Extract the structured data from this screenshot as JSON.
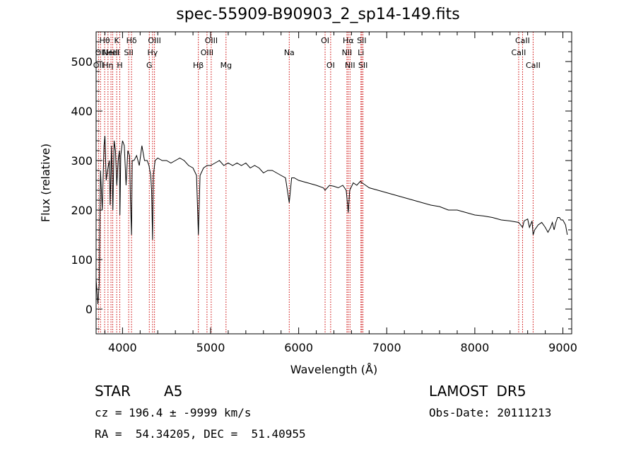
{
  "chart_data": {
    "type": "line",
    "title": "spec-55909-B90903_2_sp14-149.fits",
    "xlabel": "Wavelength (Å)",
    "ylabel": "Flux (relative)",
    "xlim": [
      3700,
      9100
    ],
    "ylim": [
      -50,
      560
    ],
    "xticks": [
      4000,
      5000,
      6000,
      7000,
      8000,
      9000
    ],
    "yticks": [
      0,
      100,
      200,
      300,
      400,
      500
    ],
    "line_color": "#000000",
    "marker_color": "#cc0000",
    "series": [
      {
        "x": [
          3700,
          3720,
          3735,
          3750,
          3770,
          3790,
          3800,
          3815,
          3830,
          3850,
          3860,
          3875,
          3890,
          3905,
          3920,
          3935,
          3950,
          3965,
          3970,
          3980,
          4000,
          4020,
          4040,
          4060,
          4080,
          4090,
          4102,
          4110,
          4130,
          4160,
          4190,
          4220,
          4250,
          4280,
          4300,
          4320,
          4330,
          4341,
          4350,
          4370,
          4400,
          4450,
          4500,
          4550,
          4600,
          4650,
          4700,
          4750,
          4800,
          4840,
          4861,
          4880,
          4920,
          4960,
          5000,
          5050,
          5100,
          5150,
          5200,
          5250,
          5300,
          5350,
          5400,
          5450,
          5500,
          5550,
          5600,
          5650,
          5700,
          5750,
          5800,
          5850,
          5893,
          5920,
          5950,
          6000,
          6100,
          6200,
          6280,
          6300,
          6350,
          6400,
          6450,
          6500,
          6540,
          6563,
          6580,
          6620,
          6660,
          6700,
          6720,
          6760,
          6800,
          6900,
          7000,
          7100,
          7200,
          7300,
          7400,
          7500,
          7600,
          7700,
          7800,
          7900,
          8000,
          8100,
          8200,
          8300,
          8400,
          8498,
          8520,
          8542,
          8560,
          8600,
          8620,
          8650,
          8662,
          8680,
          8720,
          8760,
          8800,
          8830,
          8860,
          8880,
          8900,
          8920,
          8940,
          8960,
          8980,
          9000,
          9030,
          9050
        ],
        "y": [
          60,
          10,
          50,
          280,
          200,
          330,
          350,
          260,
          280,
          300,
          210,
          330,
          200,
          340,
          320,
          250,
          300,
          320,
          190,
          310,
          340,
          330,
          250,
          320,
          310,
          220,
          150,
          300,
          300,
          310,
          290,
          330,
          300,
          300,
          290,
          270,
          240,
          140,
          270,
          300,
          305,
          300,
          300,
          295,
          300,
          305,
          300,
          290,
          285,
          270,
          150,
          270,
          285,
          290,
          290,
          295,
          300,
          290,
          295,
          290,
          295,
          290,
          295,
          285,
          290,
          285,
          275,
          280,
          280,
          275,
          270,
          265,
          215,
          265,
          265,
          260,
          255,
          250,
          245,
          240,
          250,
          248,
          245,
          250,
          240,
          195,
          240,
          255,
          250,
          258,
          255,
          250,
          245,
          240,
          235,
          230,
          225,
          220,
          215,
          210,
          207,
          200,
          200,
          195,
          190,
          188,
          185,
          180,
          178,
          175,
          170,
          165,
          178,
          182,
          165,
          178,
          150,
          160,
          170,
          175,
          165,
          155,
          165,
          175,
          160,
          175,
          185,
          185,
          180,
          180,
          170,
          150
        ]
      }
    ],
    "lines": [
      {
        "wave": 3727,
        "labels": [
          "OII"
        ],
        "row": 2
      },
      {
        "wave": 3750,
        "labels": [
          "OII"
        ],
        "row": 1
      },
      {
        "wave": 3797,
        "labels": [
          "Hθ"
        ],
        "row": 0
      },
      {
        "wave": 3835,
        "labels": [
          "Hη"
        ],
        "row": 2
      },
      {
        "wave": 3869,
        "labels": [
          "NeIII"
        ],
        "row": 1
      },
      {
        "wave": 3889,
        "labels": [
          "HeI"
        ],
        "row": 1
      },
      {
        "wave": 3934,
        "labels": [
          "K"
        ],
        "row": 0
      },
      {
        "wave": 3969,
        "labels": [
          "H"
        ],
        "row": 2
      },
      {
        "wave": 4070,
        "labels": [
          "SII"
        ],
        "row": 1
      },
      {
        "wave": 4102,
        "labels": [
          "Hδ"
        ],
        "row": 0
      },
      {
        "wave": 4304,
        "labels": [
          "G"
        ],
        "row": 2
      },
      {
        "wave": 4341,
        "labels": [
          "Hγ"
        ],
        "row": 1
      },
      {
        "wave": 4363,
        "labels": [
          "OIII"
        ],
        "row": 0
      },
      {
        "wave": 4861,
        "labels": [
          "Hβ"
        ],
        "row": 2
      },
      {
        "wave": 4959,
        "labels": [
          "OIII"
        ],
        "row": 1
      },
      {
        "wave": 5007,
        "labels": [
          "OIII"
        ],
        "row": 0
      },
      {
        "wave": 5175,
        "labels": [
          "Mg"
        ],
        "row": 2
      },
      {
        "wave": 5893,
        "labels": [
          "Na"
        ],
        "row": 1
      },
      {
        "wave": 6300,
        "labels": [
          "OI"
        ],
        "row": 0
      },
      {
        "wave": 6363,
        "labels": [
          "OI"
        ],
        "row": 2
      },
      {
        "wave": 6548,
        "labels": [
          "NII"
        ],
        "row": 1
      },
      {
        "wave": 6563,
        "labels": [
          "Hα"
        ],
        "row": 0
      },
      {
        "wave": 6583,
        "labels": [
          "NII"
        ],
        "row": 2
      },
      {
        "wave": 6707,
        "labels": [
          "Li"
        ],
        "row": 1
      },
      {
        "wave": 6716,
        "labels": [
          "SII"
        ],
        "row": 0
      },
      {
        "wave": 6730,
        "labels": [
          "SII"
        ],
        "row": 2
      },
      {
        "wave": 8498,
        "labels": [
          "CaII"
        ],
        "row": 1
      },
      {
        "wave": 8542,
        "labels": [
          "CaII"
        ],
        "row": 0
      },
      {
        "wave": 8662,
        "labels": [
          "CaII"
        ],
        "row": 2
      }
    ]
  },
  "info": {
    "object_class": "STAR",
    "subclass": "A5",
    "survey": "LAMOST DR5",
    "cz_line": "cz = 196.4 ± -9999 km/s",
    "obs_date_line": "Obs-Date: 20111213",
    "radec_line": "RA =  54.34205, DEC =  51.40955"
  }
}
